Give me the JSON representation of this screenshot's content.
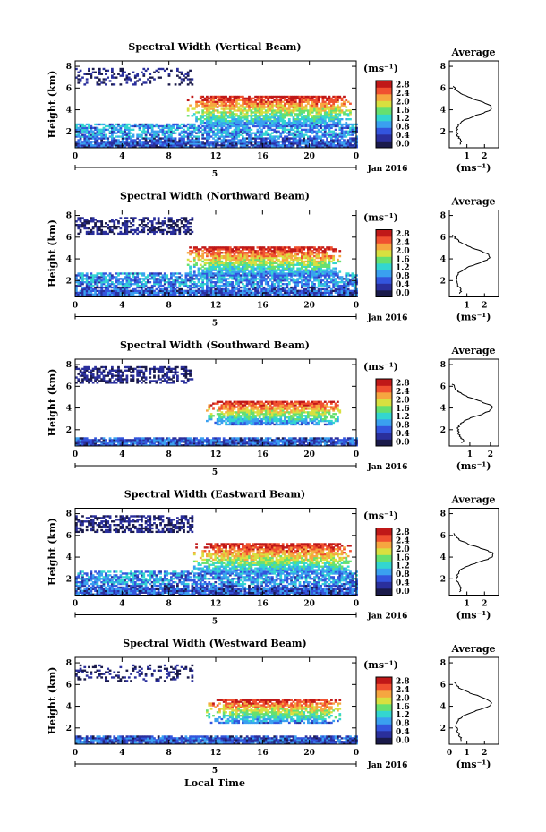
{
  "colorbar": {
    "unit": "(ms⁻¹)",
    "ticks": [
      "2.8",
      "2.4",
      "2.0",
      "1.6",
      "1.2",
      "0.8",
      "0.4",
      "0.0"
    ],
    "range": [
      0.0,
      2.8
    ],
    "colors": [
      "#1a1a4a",
      "#2a2f9c",
      "#3355dd",
      "#3aa0f0",
      "#33d6d0",
      "#66e070",
      "#d8e040",
      "#f6a640",
      "#f05030",
      "#c01818"
    ]
  },
  "axes": {
    "time_ticks": [
      "0",
      "4",
      "8",
      "12",
      "16",
      "20",
      "0"
    ],
    "date_tick": "5",
    "date_label": "Jan 2016",
    "height_label": "Height (km)",
    "height_ticks": [
      "2",
      "4",
      "6",
      "8"
    ],
    "xlabel_bottom": "Local Time",
    "avg_title": "Average",
    "avg_xlabel": "(ms⁻¹)"
  },
  "chart_data": [
    {
      "type": "heatmap",
      "title": "Spectral Width (Vertical Beam)",
      "ylim": [
        0.5,
        8.5
      ],
      "xlim": [
        0,
        24
      ],
      "low_layer_range": [
        0.5,
        2.7
      ],
      "high_layer_range": [
        2.4,
        5.2
      ],
      "high_layer_time": [
        9.5,
        23.5
      ],
      "profile": {
        "x_ticks": [
          "1",
          "2"
        ],
        "y_ticks": [
          "2",
          "4",
          "6",
          "8"
        ],
        "xlim": [
          0,
          2.8
        ],
        "peak_height": 4.2,
        "peak_value": 2.4
      }
    },
    {
      "type": "heatmap",
      "title": "Spectral Width (Northward Beam)",
      "ylim": [
        0.5,
        8.5
      ],
      "xlim": [
        0,
        24
      ],
      "low_layer_range": [
        0.5,
        2.7
      ],
      "high_layer_range": [
        2.4,
        5.0
      ],
      "high_layer_time": [
        9.5,
        22.5
      ],
      "profile": {
        "x_ticks": [
          "1",
          "2"
        ],
        "y_ticks": [
          "2",
          "4",
          "6",
          "8"
        ],
        "xlim": [
          0,
          2.8
        ],
        "peak_height": 4.2,
        "peak_value": 2.3
      }
    },
    {
      "type": "heatmap",
      "title": "Spectral Width (Southward Beam)",
      "ylim": [
        0.5,
        8.5
      ],
      "xlim": [
        0,
        24
      ],
      "low_layer_range": [
        0.5,
        1.2
      ],
      "high_layer_range": [
        2.4,
        4.6
      ],
      "high_layer_time": [
        11,
        22.5
      ],
      "profile": {
        "x_ticks": [
          "1",
          "2"
        ],
        "y_ticks": [
          "2",
          "4",
          "6",
          "8"
        ],
        "xlim": [
          0,
          2.4
        ],
        "peak_height": 4.0,
        "peak_value": 2.1
      }
    },
    {
      "type": "heatmap",
      "title": "Spectral Width (Eastward Beam)",
      "ylim": [
        0.5,
        8.5
      ],
      "xlim": [
        0,
        24
      ],
      "low_layer_range": [
        0.5,
        2.6
      ],
      "high_layer_range": [
        2.3,
        5.2
      ],
      "high_layer_time": [
        10,
        23.5
      ],
      "profile": {
        "x_ticks": [
          "1",
          "2"
        ],
        "y_ticks": [
          "2",
          "4",
          "6",
          "8"
        ],
        "xlim": [
          0,
          2.8
        ],
        "peak_height": 4.2,
        "peak_value": 2.5
      }
    },
    {
      "type": "heatmap",
      "title": "Spectral Width (Westward Beam)",
      "ylim": [
        0.5,
        8.5
      ],
      "xlim": [
        0,
        24
      ],
      "low_layer_range": [
        0.5,
        1.3
      ],
      "high_layer_range": [
        2.4,
        4.6
      ],
      "high_layer_time": [
        11,
        22.5
      ],
      "profile": {
        "x_ticks": [
          "0",
          "1",
          "2"
        ],
        "y_ticks": [
          "2",
          "4",
          "6",
          "8"
        ],
        "xlim": [
          0,
          2.8
        ],
        "peak_height": 4.3,
        "peak_value": 2.4
      }
    }
  ]
}
